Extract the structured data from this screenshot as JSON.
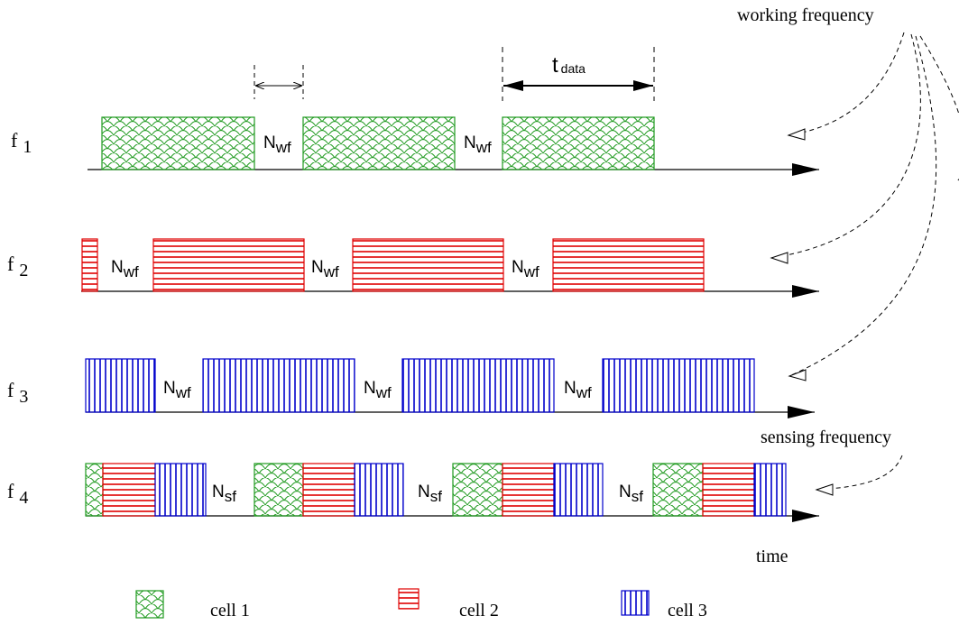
{
  "annotations": {
    "working_frequency": "working frequency",
    "sensing_frequency": "sensing frequency",
    "time": "time",
    "t_main": "t",
    "t_sub": "data"
  },
  "rows": [
    {
      "label_main": "f",
      "label_sub": "1",
      "gaps": [
        {
          "main": "N",
          "sub": "wf"
        },
        {
          "main": "N",
          "sub": "wf"
        }
      ]
    },
    {
      "label_main": "f",
      "label_sub": "2",
      "gaps": [
        {
          "main": "N",
          "sub": "wf"
        },
        {
          "main": "N",
          "sub": "wf"
        },
        {
          "main": "N",
          "sub": "wf"
        }
      ]
    },
    {
      "label_main": "f",
      "label_sub": "3",
      "gaps": [
        {
          "main": "N",
          "sub": "wf"
        },
        {
          "main": "N",
          "sub": "wf"
        },
        {
          "main": "N",
          "sub": "wf"
        }
      ]
    },
    {
      "label_main": "f",
      "label_sub": "4",
      "gaps": [
        {
          "main": "N",
          "sub": "sf"
        },
        {
          "main": "N",
          "sub": "sf"
        },
        {
          "main": "N",
          "sub": "sf"
        }
      ]
    }
  ],
  "legend": [
    {
      "label": "cell 1",
      "pattern": "scales",
      "color": "#1f9a1f"
    },
    {
      "label": "cell 2",
      "pattern": "hlines",
      "color": "#e00000"
    },
    {
      "label": "cell 3",
      "pattern": "vlines",
      "color": "#0000cc"
    }
  ],
  "colors": {
    "cell1": "#1f9a1f",
    "cell2": "#e00000",
    "cell3": "#0000cc",
    "line": "#000000"
  }
}
